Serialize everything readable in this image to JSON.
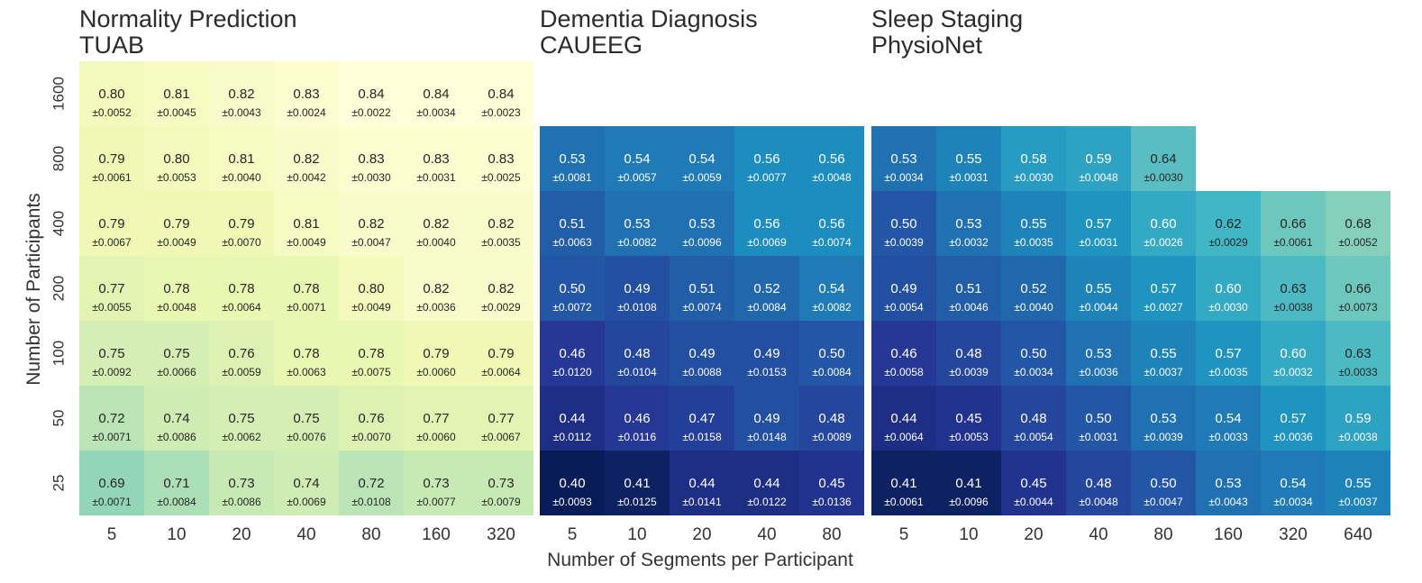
{
  "chart_data": {
    "type": "heatmap",
    "xlabel": "Number of Segments per Participant",
    "ylabel": "Number of Participants",
    "y_categories": [
      "1600",
      "800",
      "400",
      "200",
      "100",
      "50",
      "25"
    ],
    "colormap": "YlGnBu",
    "color_range": [
      0.4,
      0.84
    ],
    "panels": [
      {
        "title_line1": "Normality Prediction",
        "title_line2": "TUAB",
        "x_categories": [
          "5",
          "10",
          "20",
          "40",
          "80",
          "160",
          "320"
        ],
        "rows": [
          {
            "y": "1600",
            "values": [
              0.8,
              0.81,
              0.82,
              0.83,
              0.84,
              0.84,
              0.84
            ],
            "stds": [
              "±0.0052",
              "±0.0045",
              "±0.0043",
              "±0.0024",
              "±0.0022",
              "±0.0034",
              "±0.0023"
            ]
          },
          {
            "y": "800",
            "values": [
              0.79,
              0.8,
              0.81,
              0.82,
              0.83,
              0.83,
              0.83
            ],
            "stds": [
              "±0.0061",
              "±0.0053",
              "±0.0040",
              "±0.0042",
              "±0.0030",
              "±0.0031",
              "±0.0025"
            ]
          },
          {
            "y": "400",
            "values": [
              0.79,
              0.79,
              0.79,
              0.81,
              0.82,
              0.82,
              0.82
            ],
            "stds": [
              "±0.0067",
              "±0.0049",
              "±0.0070",
              "±0.0049",
              "±0.0047",
              "±0.0040",
              "±0.0035"
            ]
          },
          {
            "y": "200",
            "values": [
              0.77,
              0.78,
              0.78,
              0.78,
              0.8,
              0.82,
              0.82
            ],
            "stds": [
              "±0.0055",
              "±0.0048",
              "±0.0064",
              "±0.0071",
              "±0.0049",
              "±0.0036",
              "±0.0029"
            ]
          },
          {
            "y": "100",
            "values": [
              0.75,
              0.75,
              0.76,
              0.78,
              0.78,
              0.79,
              0.79
            ],
            "stds": [
              "±0.0092",
              "±0.0066",
              "±0.0059",
              "±0.0063",
              "±0.0075",
              "±0.0060",
              "±0.0064"
            ]
          },
          {
            "y": "50",
            "values": [
              0.72,
              0.74,
              0.75,
              0.75,
              0.76,
              0.77,
              0.77
            ],
            "stds": [
              "±0.0071",
              "±0.0086",
              "±0.0062",
              "±0.0076",
              "±0.0070",
              "±0.0060",
              "±0.0067"
            ]
          },
          {
            "y": "25",
            "values": [
              0.69,
              0.71,
              0.73,
              0.74,
              0.72,
              0.73,
              0.73
            ],
            "stds": [
              "±0.0071",
              "±0.0084",
              "±0.0086",
              "±0.0069",
              "±0.0108",
              "±0.0077",
              "±0.0079"
            ]
          }
        ]
      },
      {
        "title_line1": "Dementia Diagnosis",
        "title_line2": "CAUEEG",
        "x_categories": [
          "5",
          "10",
          "20",
          "40",
          "80"
        ],
        "rows": [
          {
            "y": "1600",
            "values": [
              null,
              null,
              null,
              null,
              null
            ],
            "stds": [
              null,
              null,
              null,
              null,
              null
            ]
          },
          {
            "y": "800",
            "values": [
              0.53,
              0.54,
              0.54,
              0.56,
              0.56
            ],
            "stds": [
              "±0.0081",
              "±0.0057",
              "±0.0059",
              "±0.0077",
              "±0.0048"
            ]
          },
          {
            "y": "400",
            "values": [
              0.51,
              0.53,
              0.53,
              0.56,
              0.56
            ],
            "stds": [
              "±0.0063",
              "±0.0082",
              "±0.0096",
              "±0.0069",
              "±0.0074"
            ]
          },
          {
            "y": "200",
            "values": [
              0.5,
              0.49,
              0.51,
              0.52,
              0.54
            ],
            "stds": [
              "±0.0072",
              "±0.0108",
              "±0.0074",
              "±0.0084",
              "±0.0082"
            ]
          },
          {
            "y": "100",
            "values": [
              0.46,
              0.48,
              0.49,
              0.49,
              0.5
            ],
            "stds": [
              "±0.0120",
              "±0.0104",
              "±0.0088",
              "±0.0153",
              "±0.0084"
            ]
          },
          {
            "y": "50",
            "values": [
              0.44,
              0.46,
              0.47,
              0.49,
              0.48
            ],
            "stds": [
              "±0.0112",
              "±0.0116",
              "±0.0158",
              "±0.0148",
              "±0.0089"
            ]
          },
          {
            "y": "25",
            "values": [
              0.4,
              0.41,
              0.44,
              0.44,
              0.45
            ],
            "stds": [
              "±0.0093",
              "±0.0125",
              "±0.0141",
              "±0.0122",
              "±0.0136"
            ]
          }
        ]
      },
      {
        "title_line1": "Sleep Staging",
        "title_line2": "PhysioNet",
        "x_categories": [
          "5",
          "10",
          "20",
          "40",
          "80",
          "160",
          "320",
          "640"
        ],
        "rows": [
          {
            "y": "1600",
            "values": [
              null,
              null,
              null,
              null,
              null,
              null,
              null,
              null
            ],
            "stds": [
              null,
              null,
              null,
              null,
              null,
              null,
              null,
              null
            ]
          },
          {
            "y": "800",
            "values": [
              0.53,
              0.55,
              0.58,
              0.59,
              0.64,
              null,
              null,
              null
            ],
            "stds": [
              "±0.0034",
              "±0.0031",
              "±0.0030",
              "±0.0048",
              "±0.0030",
              null,
              null,
              null
            ]
          },
          {
            "y": "400",
            "values": [
              0.5,
              0.53,
              0.55,
              0.57,
              0.6,
              0.62,
              0.66,
              0.68
            ],
            "stds": [
              "±0.0039",
              "±0.0032",
              "±0.0035",
              "±0.0031",
              "±0.0026",
              "±0.0029",
              "±0.0061",
              "±0.0052"
            ]
          },
          {
            "y": "200",
            "values": [
              0.49,
              0.51,
              0.52,
              0.55,
              0.57,
              0.6,
              0.63,
              0.66
            ],
            "stds": [
              "±0.0054",
              "±0.0046",
              "±0.0040",
              "±0.0044",
              "±0.0027",
              "±0.0030",
              "±0.0038",
              "±0.0073"
            ]
          },
          {
            "y": "100",
            "values": [
              0.46,
              0.48,
              0.5,
              0.53,
              0.55,
              0.57,
              0.6,
              0.63
            ],
            "stds": [
              "±0.0058",
              "±0.0039",
              "±0.0034",
              "±0.0036",
              "±0.0037",
              "±0.0035",
              "±0.0032",
              "±0.0033"
            ]
          },
          {
            "y": "50",
            "values": [
              0.44,
              0.45,
              0.48,
              0.5,
              0.53,
              0.54,
              0.57,
              0.59
            ],
            "stds": [
              "±0.0064",
              "±0.0053",
              "±0.0054",
              "±0.0031",
              "±0.0039",
              "±0.0033",
              "±0.0036",
              "±0.0038"
            ]
          },
          {
            "y": "25",
            "values": [
              0.41,
              0.41,
              0.45,
              0.48,
              0.5,
              0.53,
              0.54,
              0.55
            ],
            "stds": [
              "±0.0061",
              "±0.0096",
              "±0.0044",
              "±0.0048",
              "±0.0047",
              "±0.0043",
              "±0.0034",
              "±0.0037"
            ]
          }
        ]
      }
    ]
  }
}
